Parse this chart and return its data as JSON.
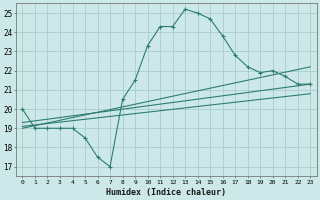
{
  "xlabel": "Humidex (Indice chaleur)",
  "background_color": "#cce8e8",
  "grid_color": "#aacccc",
  "line_color": "#2e7d6e",
  "xlim": [
    -0.5,
    23.5
  ],
  "ylim": [
    16.5,
    25.5
  ],
  "yticks": [
    17,
    18,
    19,
    20,
    21,
    22,
    23,
    24,
    25
  ],
  "xticks": [
    0,
    1,
    2,
    3,
    4,
    5,
    6,
    7,
    8,
    9,
    10,
    11,
    12,
    13,
    14,
    15,
    16,
    17,
    18,
    19,
    20,
    21,
    22,
    23
  ],
  "curve_x": [
    0,
    1,
    2,
    3,
    4,
    5,
    6,
    7,
    8,
    9,
    10,
    11,
    12,
    13,
    14,
    15,
    16,
    17,
    18,
    19,
    20,
    21,
    22,
    23
  ],
  "curve_y": [
    20.0,
    19.0,
    19.0,
    19.0,
    19.0,
    18.5,
    17.5,
    17.0,
    20.5,
    21.5,
    23.3,
    24.3,
    24.3,
    25.2,
    25.0,
    24.7,
    23.8,
    22.8,
    22.2,
    21.9,
    22.0,
    21.7,
    21.3,
    21.3
  ],
  "line1_x": [
    0,
    23
  ],
  "line1_y": [
    19.3,
    21.3
  ],
  "line2_x": [
    0,
    23
  ],
  "line2_y": [
    19.1,
    20.8
  ],
  "line3_x": [
    0,
    23
  ],
  "line3_y": [
    19.0,
    22.2
  ]
}
